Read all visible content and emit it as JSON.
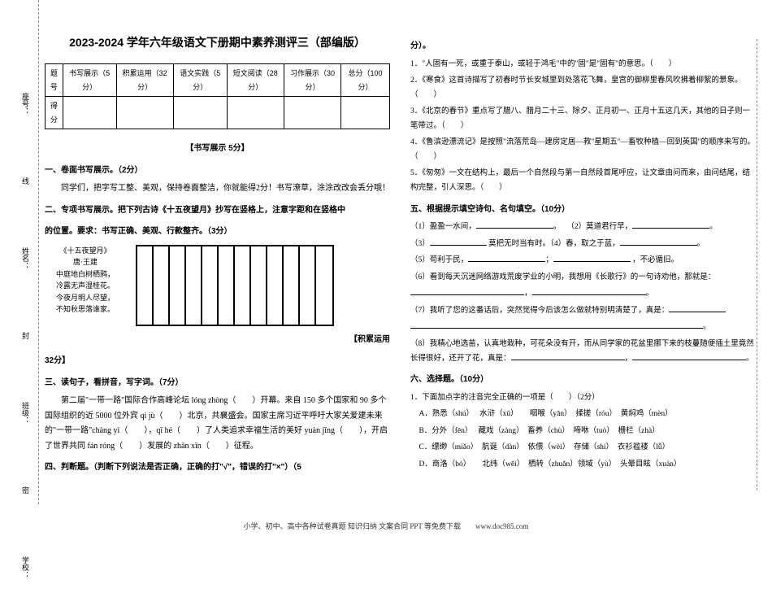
{
  "sidebar": {
    "labels": [
      "座号：",
      "姓名：",
      "班级：",
      "学校："
    ],
    "dashes": [
      "线",
      "封",
      "密"
    ]
  },
  "title": "2023-2024 学年六年级语文下册期中素养测评三（部编版）",
  "score_table": {
    "header_row": [
      "题号",
      "书写展示（5分）",
      "积累运用（32分）",
      "语文实践（5分）",
      "短文阅读（28分）",
      "习作展示（30分）",
      "总分（100分）"
    ],
    "score_label": "得分"
  },
  "sec1_title": "【书写展示 5分】",
  "sec1": {
    "h1": "一、卷面书写展示。（2分）",
    "p1": "同学们，把字写工整、美观，保持卷面整洁，你就能得2分！书写潦草，涂涂改改会丢分哦！",
    "h2": "二、专项书写展示。把下列古诗《十五夜望月》抄写在竖格上，注意字距和在竖格中",
    "h2b": "的位置。要求：书写正确、美观、行款整齐。（3分）",
    "poem_title": "《十五夜望月》",
    "poem_author": "唐·王建",
    "poem_lines": [
      "中庭地白树栖鸦，",
      "冷露无声湿桂花。",
      "今夜月明人尽望，",
      "不知秋思落谁家。"
    ]
  },
  "sec2_title": "【积累运用",
  "sec2_title2": "32分】",
  "sec3": {
    "h": "三、读句子，看拼音，写字词。（7分）",
    "p": "第二届\"一带一路\"国际合作高峰论坛 lóng zhòng（　　）开幕。来自 150 多个国家和 90 多个国际组织的近 5000 位外宾 qí jù（　　）北京，共襄盛会。国家主席习近平呼吁大家关爱建未来的\"一带一路\"chàng yì（　　），qī hé（　　）了人类追求幸福生活的美好 yuàn jǐng（　　），开启了世界共同 fán róng（　　）发展的 zhān xīn（　　）征程。"
  },
  "sec4": {
    "h": "四、判断题。（判断下列说法是否正确，正确的打\"√\"，错误的打\"×\"）（5"
  },
  "col2": {
    "p0": "分）。",
    "q1": "1．\"人固有一死，或重于泰山，或轻于鸿毛\"中的\"固\"是\"固有\"的意思。（　　）",
    "q2": "2．《寒食》这首诗描写了初春时节长安城里到处落花飞舞，皇宫的御柳里春风吹拂着柳絮的景象。（　　）",
    "q3": "3．《北京的春节》重点写了腊八、腊月二十三、除夕、正月初一、正月十五这几天，其他的日子则一笔带过。（　　）",
    "q4": "4．《鲁滨逊漂流记》是按照\"流落荒岛—建房定居—救\"星期五\"—畜牧种植—回到英国\"的顺序来写的。（　　）",
    "q5": "5．《匆匆》一文在结构上，最后一个自然段与第一自然段首尾呼应，让文章由问而来，由问结尾，结构完整，引人深思。（　　）"
  },
  "sec5": {
    "h": "五、根据提示填空诗句、名句填空。（10分）",
    "q1a": "（1）盈盈一水间，",
    "q1b": "（2）莫道君行早，",
    "q3a": "（3）",
    "q3b": "莫把无时当有时。（4）春，取之于蓝，",
    "q5a": "（5）苟利于民，",
    "q5b": "，不必循旧。",
    "q6": "（6）看到每天沉迷网络游戏荒废学业的小明，我想用《长歌行》的一句诗劝他，那就是：",
    "q7": "（7）我听了您的这番话后，突然觉得今后该怎么做就特别明清楚了，真是：",
    "q8": "（8）我精心地选苗，认真地栽种，可花朵没有开，而从同学家的花盆里挪下来的枝蔓随便插土里竟然长得很好，还开了花，真是：",
    "period": "。"
  },
  "sec6": {
    "h": "六、选择题。（10分）",
    "q1": "1．下面加点字的注音完全正确的一项是（　　）（2分）",
    "optA": "A．熟悉（shú）　 水浒（xǔ）　　咽喉（yān）　揉搓（róu）　黄焖鸡（mèn）",
    "optB": "B．分外（fēn）　 藏戏（zàng）　畜养（chù）　啼咻（tuò）　栅栏（zhà）",
    "optC": "C．缥缈（miǎo）　肮诞（dàn）　依偎（wèi）　存储（shí）　衣衫褴褛（lǚ）",
    "optD": "D．商洛（bó）　　北纬（wěi）　栖转（zhuǎn）领域（yù）　头晕目眩（xuán）"
  },
  "footer": "小学、初中、高中各种试卷真题 知识归纳 文案合同 PPT 等免费下载　　www.doc985.com"
}
